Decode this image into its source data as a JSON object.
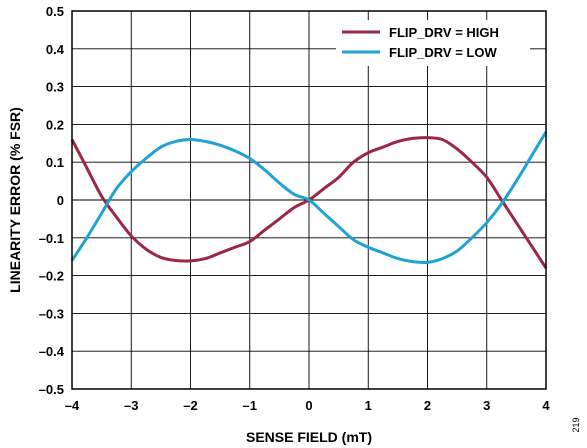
{
  "chart_data": {
    "type": "line",
    "xlabel": "SENSE FIELD (mT)",
    "ylabel": "LINEARITY ERROR (% FSR)",
    "xlim": [
      -4,
      4
    ],
    "ylim": [
      -0.5,
      0.5
    ],
    "x_ticks": [
      -4,
      -3,
      -2,
      -1,
      0,
      1,
      2,
      3,
      4
    ],
    "x_tick_labels": [
      "–4",
      "–3",
      "–2",
      "–1",
      "0",
      "1",
      "2",
      "3",
      "4"
    ],
    "y_ticks": [
      -0.5,
      -0.4,
      -0.3,
      -0.2,
      -0.1,
      0,
      0.1,
      0.2,
      0.3,
      0.4,
      0.5
    ],
    "y_tick_labels": [
      "–0.5",
      "–0.4",
      "–0.3",
      "–0.2",
      "–0.1",
      "0",
      "0.1",
      "0.2",
      "0.3",
      "0.4",
      "0.5"
    ],
    "grid": true,
    "legend_position": "top-right",
    "series": [
      {
        "name": "FLIP_DRV = HIGH",
        "color": "#9b2743",
        "x": [
          -4,
          -3.75,
          -3.5,
          -3.25,
          -3,
          -2.75,
          -2.5,
          -2.25,
          -2,
          -1.75,
          -1.5,
          -1.25,
          -1,
          -0.75,
          -0.5,
          -0.25,
          0,
          0.25,
          0.5,
          0.75,
          1,
          1.25,
          1.5,
          1.75,
          2,
          2.25,
          2.5,
          2.75,
          3,
          3.25,
          3.5,
          3.75,
          4
        ],
        "y": [
          0.16,
          0.085,
          0.01,
          -0.045,
          -0.095,
          -0.13,
          -0.152,
          -0.16,
          -0.161,
          -0.155,
          -0.14,
          -0.125,
          -0.11,
          -0.08,
          -0.05,
          -0.02,
          0.0,
          0.03,
          0.06,
          0.1,
          0.125,
          0.14,
          0.155,
          0.163,
          0.165,
          0.16,
          0.135,
          0.1,
          0.06,
          0.0,
          -0.06,
          -0.12,
          -0.18
        ]
      },
      {
        "name": "FLIP_DRV = LOW",
        "color": "#1ea3d2",
        "x": [
          -4,
          -3.75,
          -3.5,
          -3.25,
          -3,
          -2.75,
          -2.5,
          -2.25,
          -2,
          -1.75,
          -1.5,
          -1.25,
          -1,
          -0.75,
          -0.5,
          -0.25,
          0,
          0.25,
          0.5,
          0.75,
          1,
          1.25,
          1.5,
          1.75,
          2,
          2.25,
          2.5,
          2.75,
          3,
          3.25,
          3.5,
          3.75,
          4
        ],
        "y": [
          -0.16,
          -0.1,
          -0.035,
          0.03,
          0.075,
          0.11,
          0.14,
          0.155,
          0.16,
          0.155,
          0.145,
          0.13,
          0.11,
          0.08,
          0.045,
          0.015,
          0.0,
          -0.035,
          -0.07,
          -0.105,
          -0.125,
          -0.14,
          -0.155,
          -0.163,
          -0.165,
          -0.155,
          -0.135,
          -0.1,
          -0.06,
          -0.01,
          0.05,
          0.115,
          0.18
        ]
      }
    ]
  },
  "figure_id": "219"
}
